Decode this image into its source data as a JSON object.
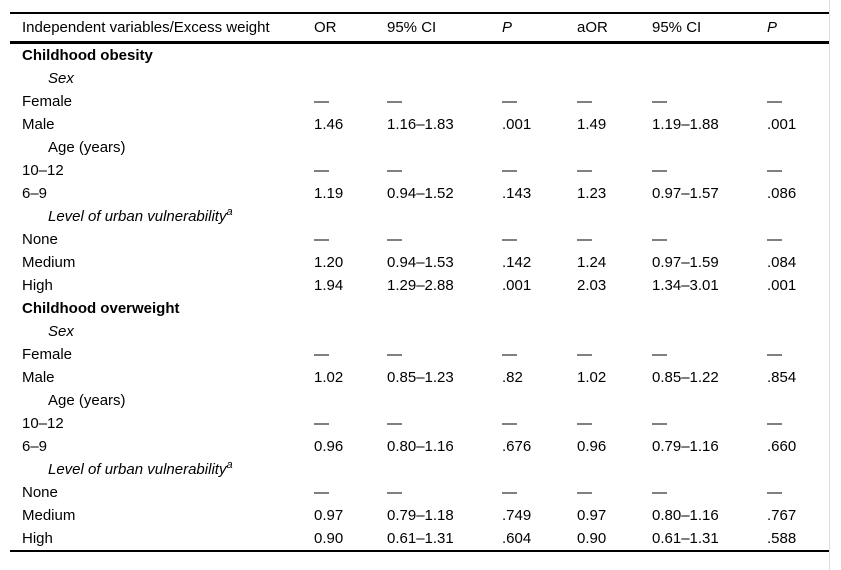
{
  "page": {
    "background": "#ffffff",
    "text_color": "#000000",
    "rule_color": "#000000",
    "edge_line_color": "#dcdcdc"
  },
  "table": {
    "columns": [
      {
        "label": "Independent variables/Excess weight",
        "italic": false
      },
      {
        "label": "OR",
        "italic": false
      },
      {
        "label": "95% CI",
        "italic": false
      },
      {
        "label": "P",
        "italic": true
      },
      {
        "label": "aOR",
        "italic": false
      },
      {
        "label": "95% CI",
        "italic": false
      },
      {
        "label": "P",
        "italic": true
      }
    ],
    "empty_cell_marker": "—",
    "footnote_marker": "a",
    "rows": [
      {
        "label": "Childhood obesity",
        "bold": true,
        "italic": false,
        "indent": false,
        "values": []
      },
      {
        "label": "Sex",
        "bold": false,
        "italic": true,
        "indent": true,
        "values": []
      },
      {
        "label": "Female",
        "bold": false,
        "italic": false,
        "indent": false,
        "values": [
          "—",
          "—",
          "—",
          "—",
          "—",
          "—"
        ]
      },
      {
        "label": "Male",
        "bold": false,
        "italic": false,
        "indent": false,
        "values": [
          "1.46",
          "1.16–1.83",
          ".001",
          "1.49",
          "1.19–1.88",
          ".001"
        ]
      },
      {
        "label": "Age (years)",
        "bold": false,
        "italic": false,
        "indent": true,
        "values": []
      },
      {
        "label": "10–12",
        "bold": false,
        "italic": false,
        "indent": false,
        "values": [
          "—",
          "—",
          "—",
          "—",
          "—",
          "—"
        ]
      },
      {
        "label": "6–9",
        "bold": false,
        "italic": false,
        "indent": false,
        "values": [
          "1.19",
          "0.94–1.52",
          ".143",
          "1.23",
          "0.97–1.57",
          ".086"
        ]
      },
      {
        "label": "Level of urban vulnerability",
        "sup": "a",
        "bold": false,
        "italic": true,
        "indent": true,
        "values": []
      },
      {
        "label": "None",
        "bold": false,
        "italic": false,
        "indent": false,
        "values": [
          "—",
          "—",
          "—",
          "—",
          "—",
          "—"
        ]
      },
      {
        "label": "Medium",
        "bold": false,
        "italic": false,
        "indent": false,
        "values": [
          "1.20",
          "0.94–1.53",
          ".142",
          "1.24",
          "0.97–1.59",
          ".084"
        ]
      },
      {
        "label": "High",
        "bold": false,
        "italic": false,
        "indent": false,
        "values": [
          "1.94",
          "1.29–2.88",
          ".001",
          "2.03",
          "1.34–3.01",
          ".001"
        ]
      },
      {
        "label": "Childhood overweight",
        "bold": true,
        "italic": false,
        "indent": false,
        "values": []
      },
      {
        "label": "Sex",
        "bold": false,
        "italic": true,
        "indent": true,
        "values": []
      },
      {
        "label": "Female",
        "bold": false,
        "italic": false,
        "indent": false,
        "values": [
          "—",
          "—",
          "—",
          "—",
          "—",
          "—"
        ]
      },
      {
        "label": "Male",
        "bold": false,
        "italic": false,
        "indent": false,
        "values": [
          "1.02",
          "0.85–1.23",
          ".82",
          "1.02",
          "0.85–1.22",
          ".854"
        ]
      },
      {
        "label": "Age (years)",
        "bold": false,
        "italic": false,
        "indent": true,
        "values": []
      },
      {
        "label": "10–12",
        "bold": false,
        "italic": false,
        "indent": false,
        "values": [
          "—",
          "—",
          "—",
          "—",
          "—",
          "—"
        ]
      },
      {
        "label": "6–9",
        "bold": false,
        "italic": false,
        "indent": false,
        "values": [
          "0.96",
          "0.80–1.16",
          ".676",
          "0.96",
          "0.79–1.16",
          ".660"
        ]
      },
      {
        "label": "Level of urban vulnerability",
        "sup": "a",
        "bold": false,
        "italic": true,
        "indent": true,
        "values": []
      },
      {
        "label": "None",
        "bold": false,
        "italic": false,
        "indent": false,
        "values": [
          "—",
          "—",
          "—",
          "—",
          "—",
          "—"
        ]
      },
      {
        "label": "Medium",
        "bold": false,
        "italic": false,
        "indent": false,
        "values": [
          "0.97",
          "0.79–1.18",
          ".749",
          "0.97",
          "0.80–1.16",
          ".767"
        ]
      },
      {
        "label": "High",
        "bold": false,
        "italic": false,
        "indent": false,
        "values": [
          "0.90",
          "0.61–1.31",
          ".604",
          "0.90",
          "0.61–1.31",
          ".588"
        ]
      }
    ]
  }
}
